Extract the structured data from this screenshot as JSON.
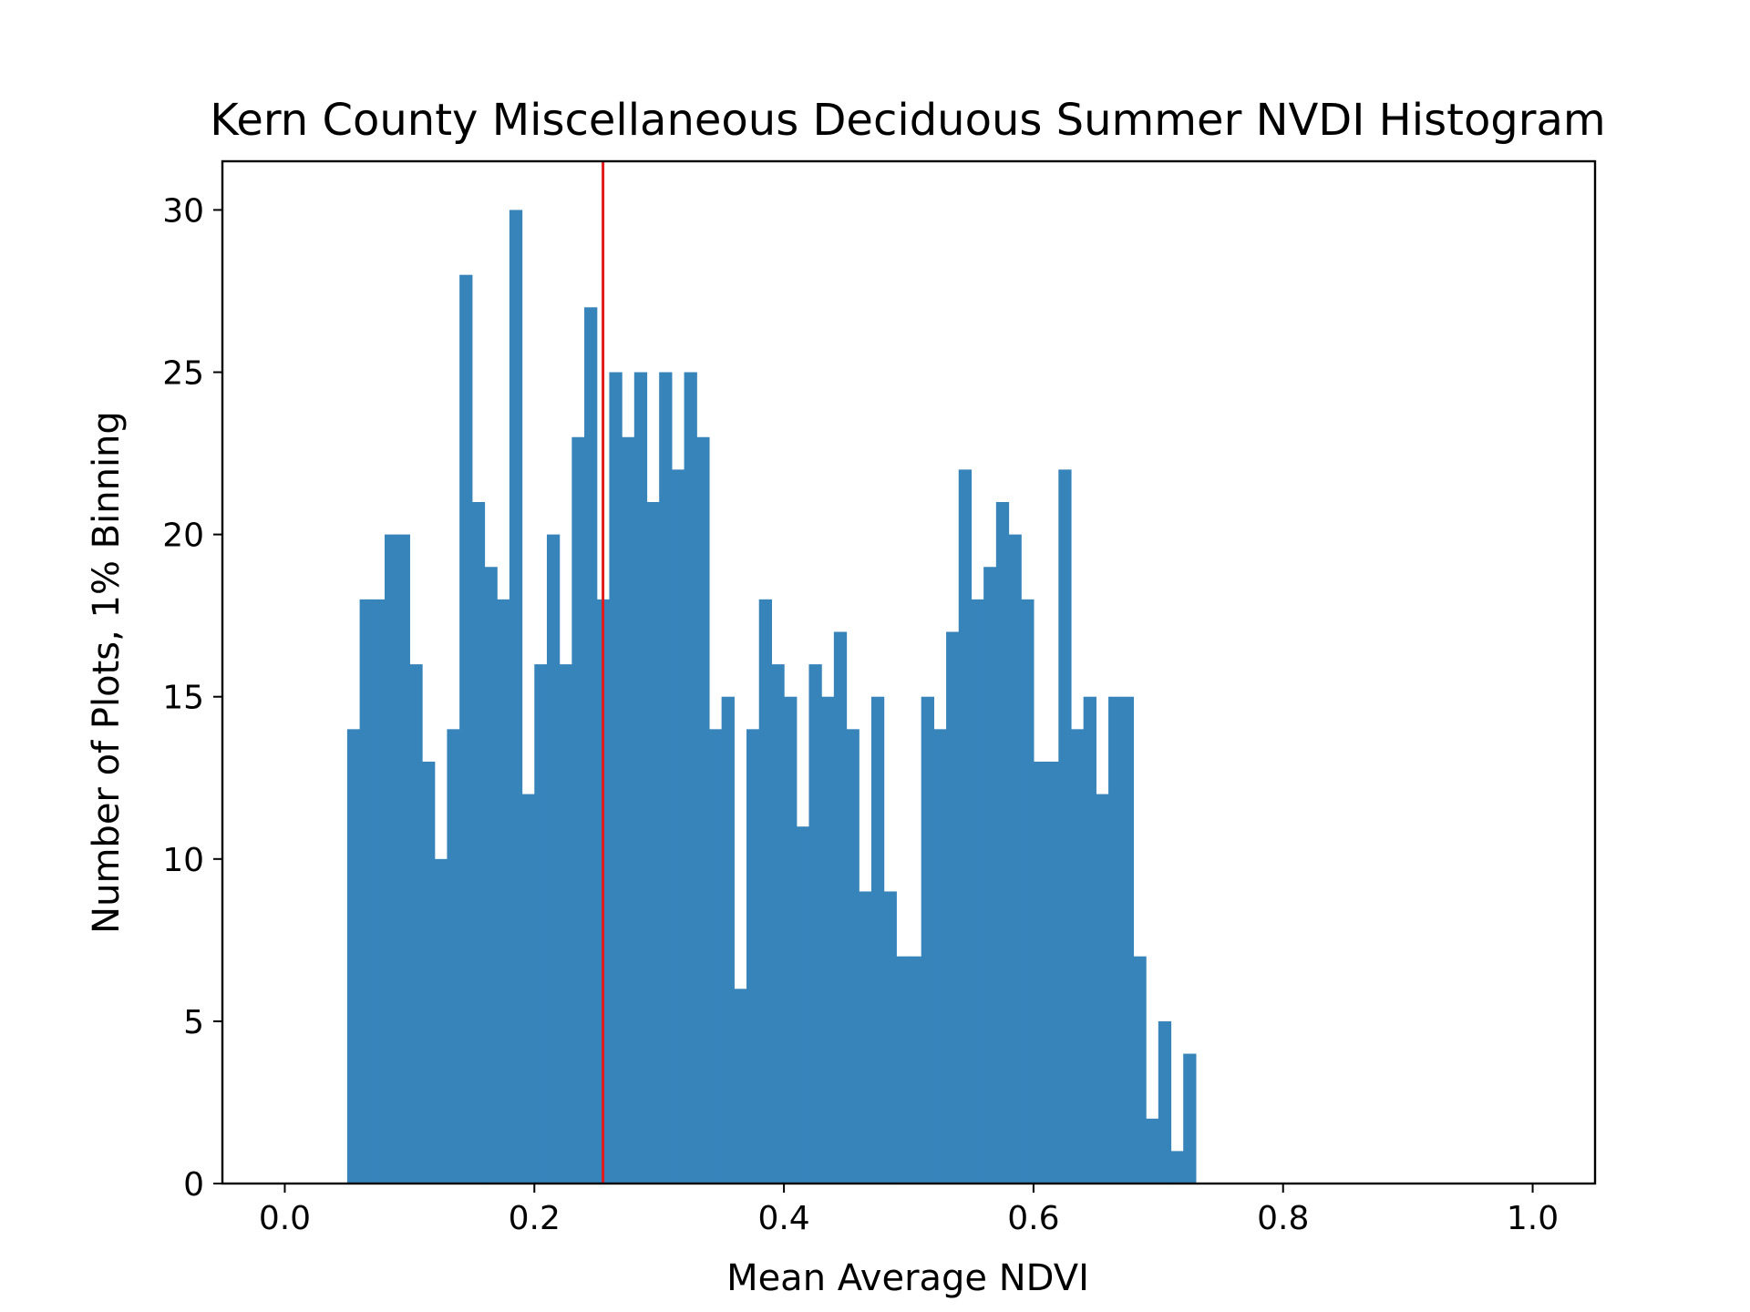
{
  "chart_data": {
    "type": "bar",
    "title": "Kern County Miscellaneous Deciduous Summer NVDI Histogram",
    "xlabel": "Mean Average NDVI",
    "ylabel": "Number of Plots, 1% Binning",
    "xlim": [
      -0.05,
      1.05
    ],
    "ylim": [
      0,
      31.5
    ],
    "xticks": [
      0.0,
      0.2,
      0.4,
      0.6,
      0.8,
      1.0
    ],
    "xtick_labels": [
      "0.0",
      "0.2",
      "0.4",
      "0.6",
      "0.8",
      "1.0"
    ],
    "yticks": [
      0,
      5,
      10,
      15,
      20,
      25,
      30
    ],
    "ytick_labels": [
      "0",
      "5",
      "10",
      "15",
      "20",
      "25",
      "30"
    ],
    "bin_start": 0.05,
    "bin_width": 0.01,
    "counts": [
      14,
      18,
      18,
      20,
      20,
      16,
      13,
      10,
      14,
      28,
      21,
      19,
      18,
      30,
      12,
      16,
      20,
      16,
      23,
      27,
      18,
      25,
      23,
      25,
      21,
      25,
      22,
      25,
      23,
      14,
      15,
      6,
      14,
      18,
      16,
      15,
      11,
      16,
      15,
      17,
      14,
      9,
      15,
      9,
      7,
      7,
      15,
      14,
      17,
      22,
      18,
      19,
      21,
      20,
      18,
      13,
      13,
      22,
      14,
      15,
      12,
      15,
      15,
      7,
      2,
      5,
      1,
      4
    ],
    "bar_color": "#3784bb",
    "reference_line": {
      "x": 0.255,
      "color": "#e31a1c"
    },
    "grid": false
  }
}
